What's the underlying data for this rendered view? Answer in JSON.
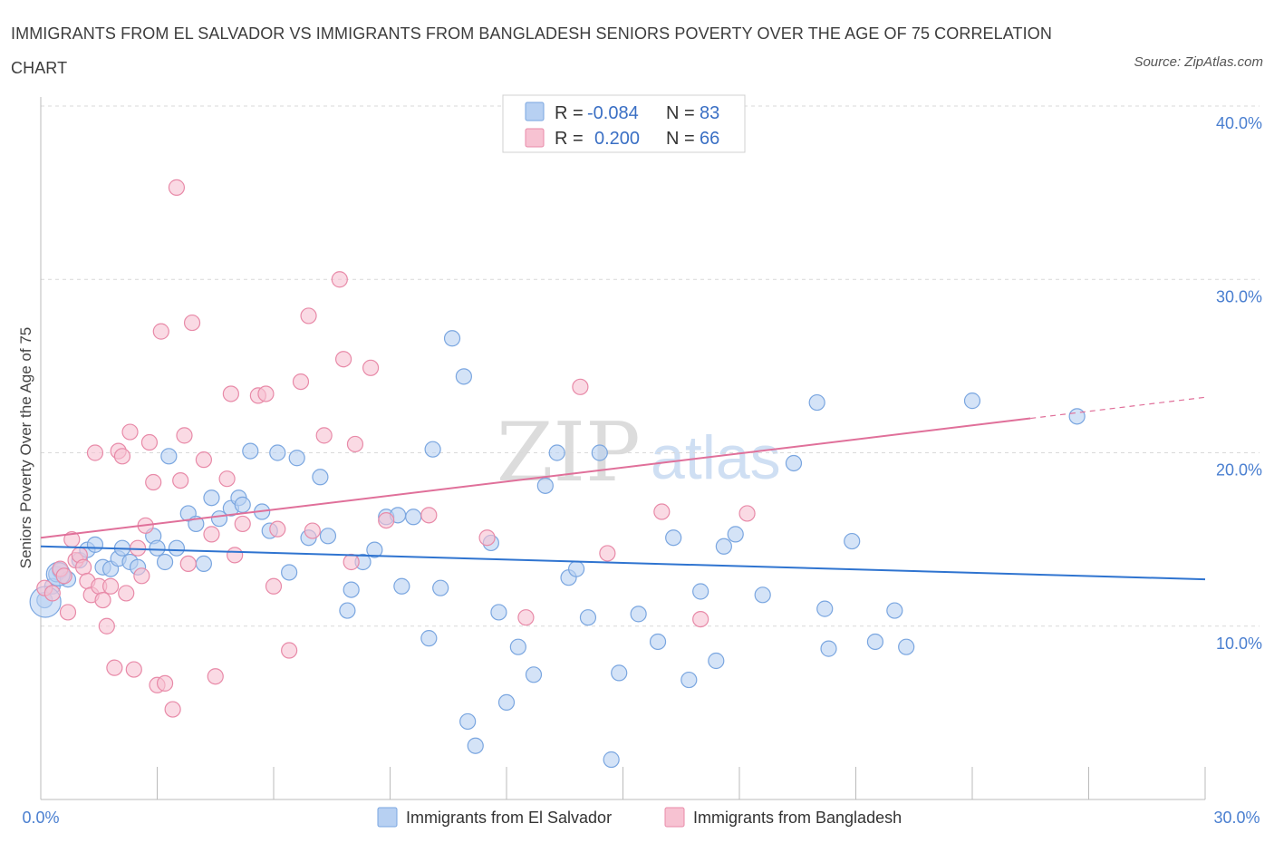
{
  "header": {
    "title": "IMMIGRANTS FROM EL SALVADOR VS IMMIGRANTS FROM BANGLADESH SENIORS POVERTY OVER THE AGE OF 75 CORRELATION CHART",
    "source": "Source: ZipAtlas.com"
  },
  "watermark": {
    "zip": "ZIP",
    "atlas": "atlas"
  },
  "colors": {
    "blue_fill": "#b7d0f2",
    "blue_stroke": "#7aa6e0",
    "blue_line": "#2f74d0",
    "pink_fill": "#f7c2d2",
    "pink_stroke": "#e88aa8",
    "pink_line": "#e0709a",
    "tick_text": "#4a7fd0",
    "grid": "#d9d9d9"
  },
  "legend": {
    "rows": [
      {
        "r_label": "R =",
        "r_value": "-0.084",
        "n_label": "N =",
        "n_value": "83"
      },
      {
        "r_label": "R =",
        "r_value": "0.200",
        "n_label": "N =",
        "n_value": "66"
      }
    ]
  },
  "chart_data": {
    "type": "scatter",
    "xlim": [
      0,
      30
    ],
    "ylim": [
      0,
      40
    ],
    "x_tick_labels": [
      "0.0%",
      "30.0%"
    ],
    "y_tick_labels": [
      "10.0%",
      "20.0%",
      "30.0%",
      "40.0%"
    ],
    "y_ticks": [
      10,
      20,
      30,
      40
    ],
    "ylabel": "Seniors Poverty Over the Age of 75",
    "grid": true,
    "legend_position": "top-center",
    "series": [
      {
        "name": "Immigrants from El Salvador",
        "color": "blue",
        "trend": {
          "x": [
            0,
            30
          ],
          "y": [
            14.6,
            12.7
          ],
          "dashed_from": null
        },
        "points": [
          [
            0.1,
            11.5
          ],
          [
            0.3,
            12.3
          ],
          [
            0.4,
            13.0
          ],
          [
            0.5,
            13.2
          ],
          [
            0.7,
            12.7
          ],
          [
            1.0,
            13.8
          ],
          [
            1.2,
            14.4
          ],
          [
            1.4,
            14.7
          ],
          [
            1.6,
            13.4
          ],
          [
            1.8,
            13.3
          ],
          [
            2.0,
            13.9
          ],
          [
            2.1,
            14.5
          ],
          [
            2.3,
            13.7
          ],
          [
            2.5,
            13.4
          ],
          [
            2.9,
            15.2
          ],
          [
            3.0,
            14.5
          ],
          [
            3.2,
            13.7
          ],
          [
            3.3,
            19.8
          ],
          [
            3.5,
            14.5
          ],
          [
            3.8,
            16.5
          ],
          [
            4.0,
            15.9
          ],
          [
            4.2,
            13.6
          ],
          [
            4.4,
            17.4
          ],
          [
            4.6,
            16.2
          ],
          [
            4.9,
            16.8
          ],
          [
            5.1,
            17.4
          ],
          [
            5.2,
            17.0
          ],
          [
            5.4,
            20.1
          ],
          [
            5.7,
            16.6
          ],
          [
            5.9,
            15.5
          ],
          [
            6.1,
            20.0
          ],
          [
            6.4,
            13.1
          ],
          [
            6.6,
            19.7
          ],
          [
            6.9,
            15.1
          ],
          [
            7.2,
            18.6
          ],
          [
            7.4,
            15.2
          ],
          [
            7.9,
            10.9
          ],
          [
            8.0,
            12.1
          ],
          [
            8.3,
            13.7
          ],
          [
            8.6,
            14.4
          ],
          [
            8.9,
            16.3
          ],
          [
            9.2,
            16.4
          ],
          [
            9.3,
            12.3
          ],
          [
            9.6,
            16.3
          ],
          [
            10.0,
            9.3
          ],
          [
            10.1,
            20.2
          ],
          [
            10.3,
            12.2
          ],
          [
            10.6,
            26.6
          ],
          [
            10.9,
            24.4
          ],
          [
            11.0,
            4.5
          ],
          [
            11.2,
            3.1
          ],
          [
            11.6,
            14.8
          ],
          [
            11.8,
            10.8
          ],
          [
            12.0,
            5.6
          ],
          [
            12.3,
            8.8
          ],
          [
            12.7,
            7.2
          ],
          [
            13.0,
            18.1
          ],
          [
            13.3,
            20.0
          ],
          [
            13.6,
            12.8
          ],
          [
            13.8,
            13.3
          ],
          [
            14.1,
            10.5
          ],
          [
            14.4,
            20.0
          ],
          [
            14.7,
            2.3
          ],
          [
            14.9,
            7.3
          ],
          [
            15.4,
            10.7
          ],
          [
            15.9,
            9.1
          ],
          [
            16.3,
            15.1
          ],
          [
            16.7,
            6.9
          ],
          [
            17.0,
            12.0
          ],
          [
            17.4,
            8.0
          ],
          [
            17.6,
            14.6
          ],
          [
            17.9,
            15.3
          ],
          [
            18.6,
            11.8
          ],
          [
            19.4,
            19.4
          ],
          [
            20.0,
            22.9
          ],
          [
            20.2,
            11.0
          ],
          [
            20.3,
            8.7
          ],
          [
            20.9,
            14.9
          ],
          [
            21.5,
            9.1
          ],
          [
            22.0,
            10.9
          ],
          [
            22.3,
            8.8
          ],
          [
            24.0,
            23.0
          ],
          [
            26.7,
            22.1
          ]
        ]
      },
      {
        "name": "Immigrants from Bangladesh",
        "color": "pink",
        "trend": {
          "x": [
            0,
            30
          ],
          "y": [
            15.1,
            23.2
          ],
          "dashed_from": 25.5
        },
        "points": [
          [
            0.1,
            12.2
          ],
          [
            0.3,
            11.9
          ],
          [
            0.5,
            13.3
          ],
          [
            0.6,
            12.9
          ],
          [
            0.7,
            10.8
          ],
          [
            0.8,
            15.0
          ],
          [
            0.9,
            13.8
          ],
          [
            1.0,
            14.1
          ],
          [
            1.1,
            13.4
          ],
          [
            1.2,
            12.6
          ],
          [
            1.3,
            11.8
          ],
          [
            1.4,
            20.0
          ],
          [
            1.5,
            12.3
          ],
          [
            1.6,
            11.5
          ],
          [
            1.7,
            10.0
          ],
          [
            1.8,
            12.3
          ],
          [
            1.9,
            7.6
          ],
          [
            2.0,
            20.1
          ],
          [
            2.1,
            19.8
          ],
          [
            2.2,
            11.9
          ],
          [
            2.3,
            21.2
          ],
          [
            2.4,
            7.5
          ],
          [
            2.5,
            14.5
          ],
          [
            2.6,
            12.9
          ],
          [
            2.7,
            15.8
          ],
          [
            2.8,
            20.6
          ],
          [
            2.9,
            18.3
          ],
          [
            3.0,
            6.6
          ],
          [
            3.1,
            27.0
          ],
          [
            3.2,
            6.7
          ],
          [
            3.4,
            5.2
          ],
          [
            3.5,
            35.3
          ],
          [
            3.6,
            18.4
          ],
          [
            3.7,
            21.0
          ],
          [
            3.8,
            13.6
          ],
          [
            3.9,
            27.5
          ],
          [
            4.2,
            19.6
          ],
          [
            4.4,
            15.3
          ],
          [
            4.5,
            7.1
          ],
          [
            4.8,
            18.5
          ],
          [
            4.9,
            23.4
          ],
          [
            5.0,
            14.1
          ],
          [
            5.2,
            15.9
          ],
          [
            5.6,
            23.3
          ],
          [
            5.8,
            23.4
          ],
          [
            6.0,
            12.3
          ],
          [
            6.1,
            15.6
          ],
          [
            6.4,
            8.6
          ],
          [
            6.7,
            24.1
          ],
          [
            6.9,
            27.9
          ],
          [
            7.0,
            15.5
          ],
          [
            7.3,
            21.0
          ],
          [
            7.7,
            30.0
          ],
          [
            7.8,
            25.4
          ],
          [
            8.0,
            13.7
          ],
          [
            8.1,
            20.5
          ],
          [
            8.5,
            24.9
          ],
          [
            8.9,
            16.1
          ],
          [
            10.0,
            16.4
          ],
          [
            11.5,
            15.1
          ],
          [
            12.5,
            10.5
          ],
          [
            13.9,
            23.8
          ],
          [
            14.6,
            14.2
          ],
          [
            16.0,
            16.6
          ],
          [
            17.0,
            10.4
          ],
          [
            18.2,
            16.5
          ]
        ]
      }
    ]
  }
}
